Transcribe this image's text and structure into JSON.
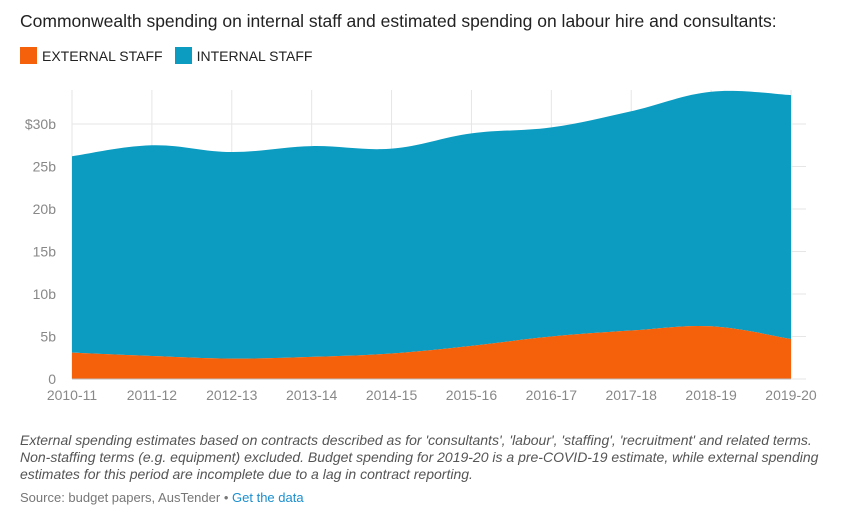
{
  "chart_data": {
    "type": "area",
    "title": "Commonwealth spending on internal staff and estimated spending on labour hire and consultants:",
    "categories": [
      "2010-11",
      "2011-12",
      "2012-13",
      "2013-14",
      "2014-15",
      "2015-16",
      "2016-17",
      "2017-18",
      "2018-19",
      "2019-20"
    ],
    "series": [
      {
        "name": "EXTERNAL STAFF",
        "color": "#f5600a",
        "values": [
          3.1,
          2.7,
          2.4,
          2.6,
          3.0,
          3.9,
          5.0,
          5.7,
          6.2,
          4.7
        ]
      },
      {
        "name": "INTERNAL STAFF",
        "color": "#0c9cc2",
        "values": [
          23.1,
          24.8,
          24.3,
          24.8,
          24.1,
          25.0,
          24.6,
          25.8,
          27.6,
          28.7
        ]
      }
    ],
    "stacked": true,
    "yticks": [
      "0",
      "5b",
      "10b",
      "15b",
      "20b",
      "25b",
      "$30b"
    ],
    "ylim": [
      0,
      34
    ],
    "grid": true,
    "legend_position": "top-left"
  },
  "note": "External spending estimates based on contracts described as for 'consultants', 'labour', 'staffing', 'recruitment' and related terms. Non-staffing terms (e.g. equipment) excluded. Budget spending for 2019-20 is a pre-COVID-19 estimate, while external spending estimates for this period are incomplete due to a lag in contract reporting.",
  "source": {
    "label": "Source: budget papers, AusTender",
    "separator": "•",
    "link": "Get the data"
  }
}
